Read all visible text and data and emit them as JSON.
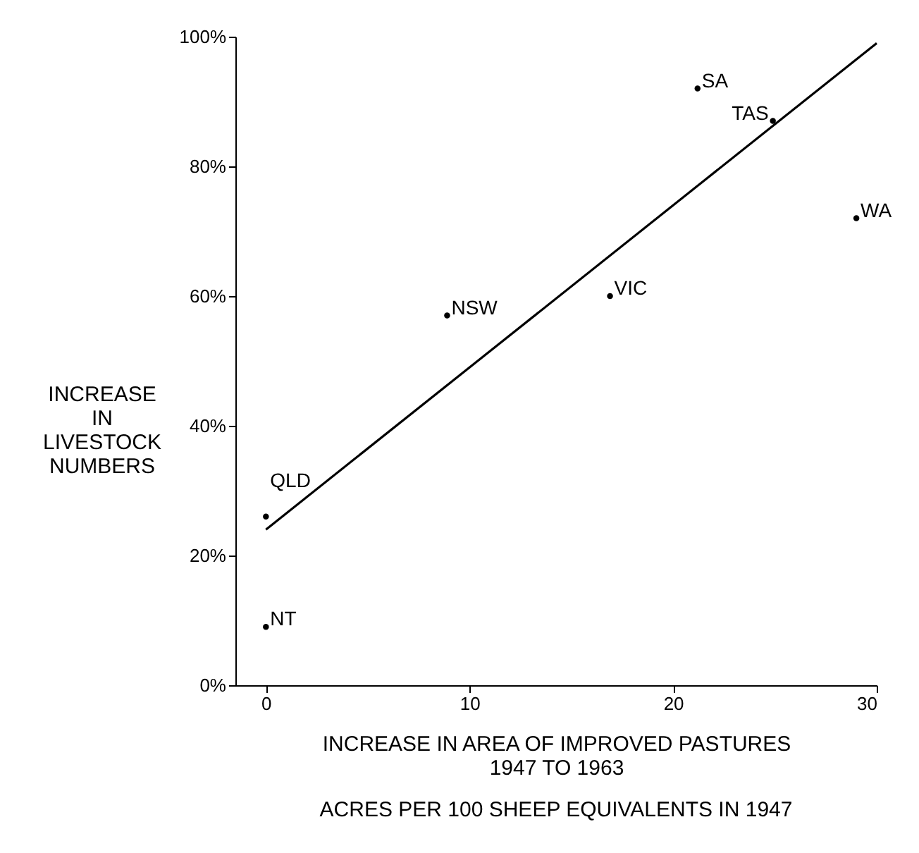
{
  "chart_data": {
    "type": "scatter",
    "xlabel": "INCREASE IN AREA OF IMPROVED PASTURES\n1947 TO 1963",
    "ylabel": "INCREASE\nIN\nLIVESTOCK\nNUMBERS",
    "annotations": [
      "ACRES PER 100 SHEEP EQUIVALENTS IN 1947",
      {
        "text": "SA",
        "x": 21.2,
        "y": 92
      },
      {
        "text": "TAS",
        "x": 24.9,
        "y": 87
      },
      {
        "text": "WA",
        "x": 29.0,
        "y": 72
      },
      {
        "text": "VIC",
        "x": 16.9,
        "y": 60
      },
      {
        "text": "NSW",
        "x": 8.9,
        "y": 57
      },
      {
        "text": "QLD",
        "x": 0,
        "y": 26
      },
      {
        "text": "NT",
        "x": 0,
        "y": 9
      }
    ],
    "series": [
      {
        "type": "scatter",
        "color": "#000000",
        "marker": "circle",
        "x": [
          21.2,
          24.9,
          29.0,
          16.9,
          8.9,
          0,
          0
        ],
        "values": [
          92,
          87,
          72,
          60,
          57,
          26,
          9
        ]
      },
      {
        "type": "line",
        "color": "#000000",
        "marker": "none",
        "line_style": "solid",
        "x": [
          0,
          30
        ],
        "values": [
          24,
          99
        ]
      }
    ],
    "xlim": [
      -1.5,
      30
    ],
    "ylim": [
      0,
      100
    ],
    "xticks": [
      0,
      10,
      20,
      30
    ],
    "yticks": [
      {
        "value": 0,
        "label": "0%"
      },
      {
        "value": 20,
        "label": "20%"
      },
      {
        "value": 40,
        "label": "40%"
      },
      {
        "value": 60,
        "label": "60%"
      },
      {
        "value": 80,
        "label": "80%"
      },
      {
        "value": 100,
        "label": "100%"
      }
    ],
    "grid": false
  }
}
